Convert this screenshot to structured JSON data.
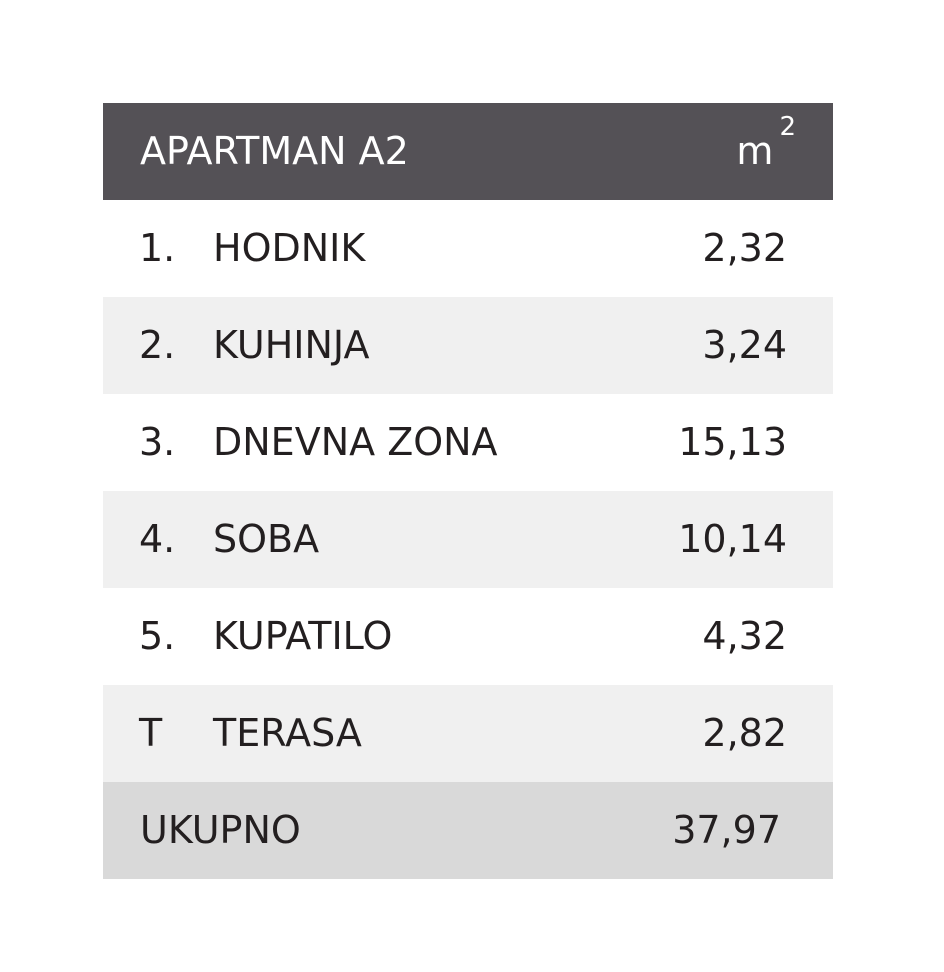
{
  "table": {
    "title": "APARTMAN A2",
    "unit_base": "m",
    "unit_exp": "2",
    "rows": [
      {
        "num": "1.",
        "name": "HODNIK",
        "value": "2,32"
      },
      {
        "num": "2.",
        "name": "KUHINJA",
        "value": "3,24"
      },
      {
        "num": "3.",
        "name": "DNEVNA ZONA",
        "value": "15,13"
      },
      {
        "num": "4.",
        "name": "SOBA",
        "value": "10,14"
      },
      {
        "num": "5.",
        "name": "KUPATILO",
        "value": "4,32"
      },
      {
        "num": "T",
        "name": "TERASA",
        "value": "2,82"
      }
    ],
    "total_label": "UKUPNO",
    "total_value": "37,97"
  },
  "colors": {
    "header_bg": "#545156",
    "alt_row_bg": "#f0f0f0",
    "total_bg": "#d9d9d9",
    "text": "#231f20"
  }
}
